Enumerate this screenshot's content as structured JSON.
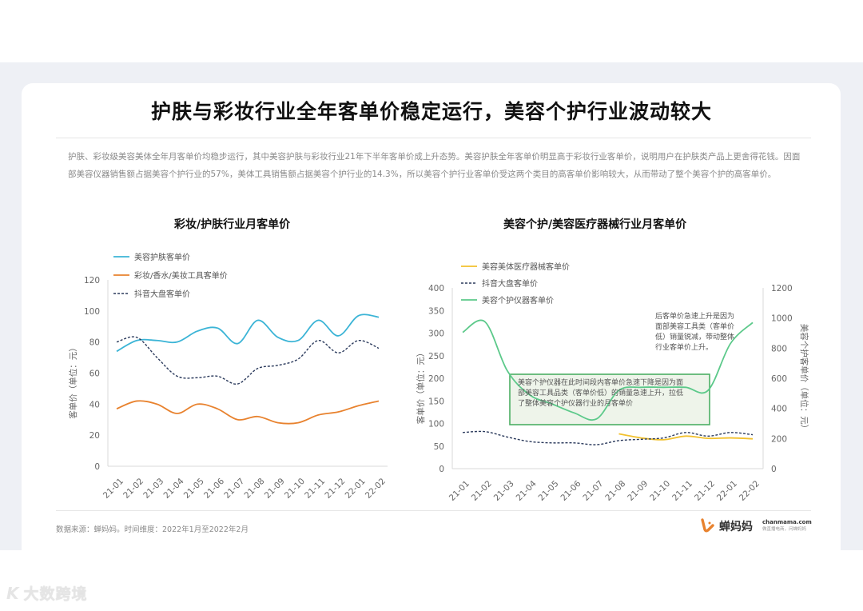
{
  "page": {
    "title": "护肤与彩妆行业全年客单价稳定运行，美容个护行业波动较大",
    "summary": "护肤、彩妆级美容美体全年月客单价均稳步运行，其中美容护肤与彩妆行业21年下半年客单价成上升态势。美容护肤全年客单价明显高于彩妆行业客单价，说明用户在护肤类产品上更舍得花钱。因面部美容仪器销售额占据美容个护行业的57%，美体工具销售额占据美容个护行业的14.3%，所以美容个护行业客单价受这两个类目的高客单价影响较大，从而带动了整个美容个护的高客单价。",
    "source": "数据来源：蝉妈妈。时间维度：2022年1月至2022年2月",
    "logo": {
      "name": "蝉妈妈",
      "domain": "chanmama.com",
      "slogan": "做直播电商，问蝉妈妈"
    },
    "watermark": {
      "mark": "K",
      "text": "大数跨境"
    }
  },
  "colors": {
    "skincare": "#3bb4d6",
    "makeup": "#e8822e",
    "douyin": "#2b3a5c",
    "medical": "#f2c12e",
    "device": "#5cc98a",
    "note_border": "#4caf64",
    "note_fill": "#eef4ea"
  },
  "chart_data": [
    {
      "type": "line",
      "title": "彩妆/护肤行业月客单价",
      "xlabel": "",
      "ylabel": "客单价（单位：元）",
      "ylim": [
        0,
        120
      ],
      "yticks": [
        0,
        20,
        40,
        60,
        80,
        100,
        120
      ],
      "categories": [
        "21-01",
        "21-02",
        "21-03",
        "21-04",
        "21-05",
        "21-06",
        "21-07",
        "21-08",
        "21-09",
        "21-10",
        "21-11",
        "21-12",
        "22-01",
        "22-02"
      ],
      "legend_position": "top-left",
      "grid": false,
      "series": [
        {
          "name": "美容护肤客单价",
          "style": "solid",
          "color": "#3bb4d6",
          "values": [
            74,
            81,
            81,
            80,
            87,
            89,
            79,
            94,
            83,
            81,
            94,
            84,
            97,
            96
          ]
        },
        {
          "name": "彩妆/香水/美妆工具客单价",
          "style": "solid",
          "color": "#e8822e",
          "values": [
            37,
            42,
            40,
            34,
            40,
            37,
            30,
            32,
            28,
            28,
            33,
            35,
            39,
            42
          ]
        },
        {
          "name": "抖音大盘客单价",
          "style": "dashed",
          "color": "#2b3a5c",
          "values": [
            80,
            83,
            70,
            58,
            57,
            58,
            53,
            63,
            65,
            69,
            81,
            73,
            81,
            76
          ]
        }
      ]
    },
    {
      "type": "line",
      "title": "美容个护/美容医疗器械行业月客单价",
      "xlabel": "",
      "ylabel": "客单价（单位：元）",
      "ylabel_right": "美容个护客单价（单位：元）",
      "ylim": [
        0,
        400
      ],
      "ylim_right": [
        0,
        1200
      ],
      "yticks": [
        0,
        50,
        100,
        150,
        200,
        250,
        300,
        350,
        400
      ],
      "yticks_right": [
        0,
        200,
        400,
        600,
        800,
        1000,
        1200
      ],
      "categories": [
        "21-01",
        "21-02",
        "21-03",
        "21-04",
        "21-05",
        "21-06",
        "21-07",
        "21-08",
        "21-09",
        "21-10",
        "21-11",
        "21-12",
        "22-01",
        "22-02"
      ],
      "legend_position": "top-left",
      "grid": false,
      "series": [
        {
          "name": "美容美体医疗器械客单价",
          "axis": "left",
          "style": "solid",
          "color": "#f2c12e",
          "values": [
            null,
            null,
            null,
            null,
            null,
            null,
            null,
            77,
            68,
            64,
            72,
            67,
            68,
            66
          ]
        },
        {
          "name": "抖音大盘客单价",
          "axis": "left",
          "style": "dashed",
          "color": "#2b3a5c",
          "values": [
            80,
            82,
            70,
            60,
            57,
            57,
            53,
            62,
            65,
            68,
            80,
            72,
            80,
            75
          ]
        },
        {
          "name": "美容个护仪器客单价",
          "axis": "right",
          "style": "solid",
          "color": "#5cc98a",
          "values": [
            905,
            975,
            650,
            490,
            430,
            370,
            330,
            520,
            540,
            540,
            540,
            520,
            830,
            970
          ]
        }
      ],
      "annotations": [
        {
          "text_lines": [
            "后客单价急速上升是因为",
            "面部美容工具类（客单价",
            "低）销量锐减，带动整体",
            "行业客单价上升。"
          ],
          "boxed": false
        },
        {
          "text_lines": [
            "美容个护仪器在此时间段内客单价急速下降是因为面",
            "部美容工具品类（客单价低）的销量急速上升，拉低",
            "了整体美容个护仪器行业的月客单价"
          ],
          "boxed": true
        }
      ]
    }
  ]
}
